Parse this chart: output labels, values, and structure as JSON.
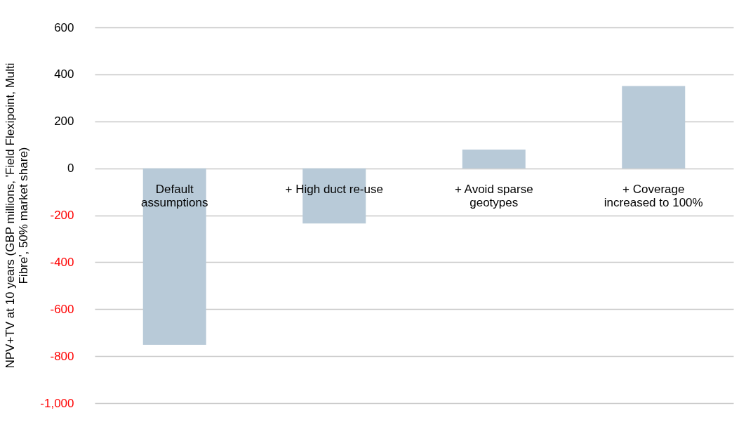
{
  "chart_data": {
    "type": "bar",
    "ylabel": "NPV+TV at 10 years (GBP millions, 'Field Flexipoint, Multi Fibre', 50% market share)",
    "categories": [
      "Default assumptions",
      "+ High duct re-use",
      "+ Avoid sparse geotypes",
      "+ Coverage increased to 100%"
    ],
    "values": [
      -752,
      -235,
      80,
      350
    ],
    "color": "#b8cad8",
    "ylim": [
      -1000,
      600
    ],
    "yticks": [
      {
        "value": -1000,
        "label": "-1,000"
      },
      -800,
      -600,
      -400,
      -200,
      0,
      200,
      400,
      600
    ],
    "grid": "y"
  }
}
